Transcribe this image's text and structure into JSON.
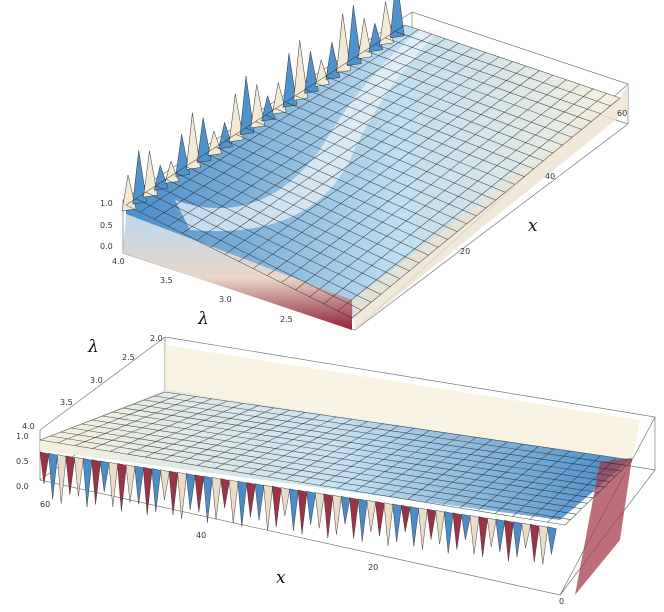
{
  "chart_data": [
    {
      "type": "surface3d",
      "xlabel": "x",
      "ylabel": "λ",
      "zlabel": "",
      "x_ticks": [
        "20",
        "40",
        "60"
      ],
      "x_range": [
        0,
        64
      ],
      "lambda_ticks": [
        "4.0",
        "3.5",
        "3.0",
        "2.5"
      ],
      "lambda_range": [
        2.2,
        4.0
      ],
      "z_ticks": [
        "1.0",
        "0.5",
        "0.0"
      ],
      "z_range": [
        0,
        1
      ],
      "colors": {
        "low": "#8e2035",
        "mid": "#f6f0dc",
        "high": "#3f86c4"
      }
    },
    {
      "type": "surface3d",
      "xlabel": "x",
      "ylabel": "λ",
      "zlabel": "",
      "x_ticks": [
        "60",
        "40",
        "20",
        "0"
      ],
      "x_range": [
        0,
        64
      ],
      "lambda_ticks": [
        "2.0",
        "2.5",
        "3.0",
        "3.5",
        "4.0"
      ],
      "lambda_range": [
        2.0,
        4.0
      ],
      "z_ticks": [
        "1.0",
        "0.5",
        "0.0"
      ],
      "z_range": [
        0,
        1
      ],
      "colors": {
        "low": "#8e2035",
        "mid": "#f6f0dc",
        "high": "#3f86c4"
      }
    }
  ]
}
